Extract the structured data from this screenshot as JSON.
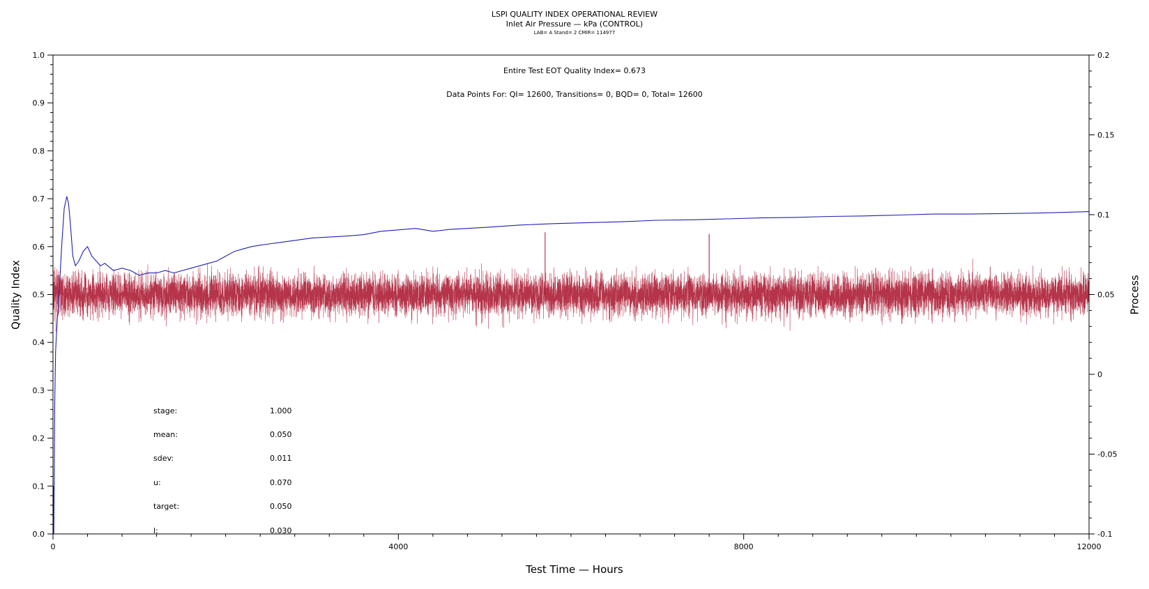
{
  "header": {
    "title": "LSPI QUALITY INDEX OPERATIONAL REVIEW",
    "subtitle": "Inlet Air Pressure — kPa (CONTROL)",
    "meta": "LAB= A Stand= 2 CMIR= 114977"
  },
  "summary": {
    "qi_line": "Entire Test EOT Quality Index=   0.673",
    "points_line": "Data Points For: QI= 12600, Transitions=     0, BQD=     0, Total= 12600"
  },
  "stats": [
    {
      "label": "stage:",
      "value": "1.000"
    },
    {
      "label": "mean:",
      "value": "0.050"
    },
    {
      "label": "sdev:",
      "value": "0.011"
    },
    {
      "label": "u:",
      "value": "0.070"
    },
    {
      "label": "target:",
      "value": "0.050"
    },
    {
      "label": "l:",
      "value": "0.030"
    }
  ],
  "chart_data": {
    "type": "line",
    "xlabel": "Test Time — Hours",
    "ylabel": "Quality Index",
    "y2label": "Process",
    "xlim": [
      0,
      12000
    ],
    "ylim": [
      0,
      1.0
    ],
    "y2lim": [
      -0.1,
      0.2
    ],
    "x_ticks": [
      0,
      4000,
      8000,
      12000
    ],
    "y_ticks": [
      "0.0",
      "0.1",
      "0.2",
      "0.3",
      "0.4",
      "0.5",
      "0.6",
      "0.7",
      "0.8",
      "0.9",
      "1.0"
    ],
    "y2_ticks": [
      "-0.1",
      "-0.05",
      "0",
      "0.05",
      "0.1",
      "0.15",
      "0.2"
    ],
    "grid": false,
    "series": [
      {
        "axis": "left",
        "color": "#1f1fb4",
        "x": [
          0,
          5,
          10,
          20,
          30,
          50,
          70,
          100,
          130,
          160,
          180,
          200,
          230,
          260,
          300,
          350,
          400,
          450,
          500,
          550,
          600,
          700,
          800,
          900,
          1000,
          1100,
          1200,
          1300,
          1400,
          1500,
          1600,
          1700,
          1800,
          1900,
          2000,
          2100,
          2200,
          2300,
          2400,
          2600,
          2800,
          3000,
          3200,
          3400,
          3600,
          3800,
          4000,
          4200,
          4400,
          4600,
          4800,
          5000,
          5400,
          5800,
          6200,
          6600,
          7000,
          7400,
          7800,
          8200,
          8600,
          9000,
          9400,
          9800,
          10200,
          10600,
          11000,
          11400,
          12000
        ],
        "y": [
          0.0,
          0.1,
          0.0,
          0.27,
          0.38,
          0.45,
          0.5,
          0.6,
          0.68,
          0.705,
          0.69,
          0.65,
          0.58,
          0.56,
          0.57,
          0.59,
          0.6,
          0.58,
          0.57,
          0.56,
          0.565,
          0.55,
          0.555,
          0.55,
          0.54,
          0.545,
          0.545,
          0.55,
          0.545,
          0.55,
          0.555,
          0.56,
          0.565,
          0.57,
          0.58,
          0.59,
          0.595,
          0.6,
          0.603,
          0.608,
          0.613,
          0.618,
          0.62,
          0.622,
          0.625,
          0.632,
          0.635,
          0.638,
          0.632,
          0.636,
          0.638,
          0.64,
          0.645,
          0.648,
          0.65,
          0.652,
          0.655,
          0.656,
          0.658,
          0.66,
          0.661,
          0.663,
          0.664,
          0.666,
          0.668,
          0.668,
          0.669,
          0.67,
          0.673
        ]
      },
      {
        "axis": "right",
        "color": "#a8102a",
        "count": 12600,
        "center": 0.05,
        "sdev": 0.011,
        "spikes": [
          {
            "x": 5700,
            "y": 0.089
          },
          {
            "x": 7600,
            "y": 0.088
          }
        ]
      }
    ]
  }
}
